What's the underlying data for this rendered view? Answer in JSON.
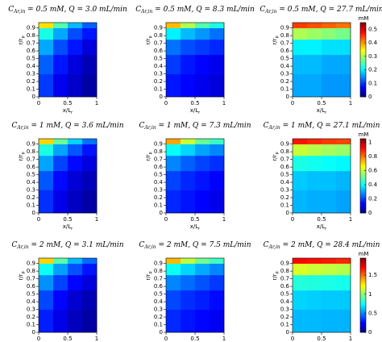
{
  "chart_data": [
    {
      "type": "heatmap",
      "title_symbol": "C",
      "title_subscript": "Ar,in",
      "title": " = 0.5 mM, Q = 3.0 mL/min",
      "xlabel": "x/L",
      "xlabel_sub": "r",
      "ylabel": "r/r",
      "ylabel_sub": "p",
      "xlim": [
        0,
        1
      ],
      "ylim": [
        0,
        0.97
      ],
      "xticks": [
        0,
        0.5,
        1
      ],
      "yticks": [
        0,
        0.1,
        0.2,
        0.3,
        0.4,
        0.5,
        0.6,
        0.7,
        0.8,
        0.9
      ],
      "x_edges": [
        0,
        0.25,
        0.5,
        0.75,
        1
      ],
      "y_edges": [
        0,
        0.3,
        0.55,
        0.75,
        0.9,
        0.97
      ],
      "clim": [
        0,
        0.55
      ],
      "colormap": "jet",
      "z": [
        [
          0.1,
          0.06,
          0.04,
          0.02
        ],
        [
          0.12,
          0.08,
          0.05,
          0.03
        ],
        [
          0.16,
          0.11,
          0.08,
          0.05
        ],
        [
          0.22,
          0.16,
          0.11,
          0.08
        ],
        [
          0.36,
          0.25,
          0.17,
          0.12
        ]
      ]
    },
    {
      "type": "heatmap",
      "title_symbol": "C",
      "title_subscript": "Ar,in",
      "title": " = 0.5 mM, Q = 8.3 mL/min",
      "xlabel": "x/L",
      "xlabel_sub": "r",
      "ylabel": "r/r",
      "ylabel_sub": "p",
      "xlim": [
        0,
        1
      ],
      "ylim": [
        0,
        0.97
      ],
      "xticks": [
        0,
        0.5,
        1
      ],
      "yticks": [
        0,
        0.1,
        0.2,
        0.3,
        0.4,
        0.5,
        0.6,
        0.7,
        0.8,
        0.9
      ],
      "x_edges": [
        0,
        0.25,
        0.5,
        0.75,
        1
      ],
      "y_edges": [
        0,
        0.3,
        0.55,
        0.75,
        0.9,
        0.97
      ],
      "clim": [
        0,
        0.55
      ],
      "colormap": "jet",
      "z": [
        [
          0.08,
          0.07,
          0.06,
          0.05
        ],
        [
          0.1,
          0.08,
          0.07,
          0.06
        ],
        [
          0.13,
          0.11,
          0.1,
          0.09
        ],
        [
          0.2,
          0.17,
          0.15,
          0.13
        ],
        [
          0.38,
          0.3,
          0.25,
          0.22
        ]
      ]
    },
    {
      "type": "heatmap",
      "title_symbol": "C",
      "title_subscript": "Ar,in",
      "title": " = 0.5 mM, Q = 27.7 mL/min",
      "xlabel": "x/L",
      "xlabel_sub": "r",
      "ylabel": "r/r",
      "ylabel_sub": "p",
      "xlim": [
        0,
        1
      ],
      "ylim": [
        0,
        0.97
      ],
      "xticks": [
        0,
        0.5,
        1
      ],
      "yticks": [
        0,
        0.1,
        0.2,
        0.3,
        0.4,
        0.5,
        0.6,
        0.7,
        0.8,
        0.9
      ],
      "x_edges": [
        0,
        0.25,
        0.5,
        0.75,
        1
      ],
      "y_edges": [
        0,
        0.3,
        0.55,
        0.75,
        0.9,
        0.97
      ],
      "clim": [
        0,
        0.55
      ],
      "colormap": "jet",
      "z": [
        [
          0.16,
          0.16,
          0.15,
          0.15
        ],
        [
          0.17,
          0.17,
          0.16,
          0.16
        ],
        [
          0.2,
          0.2,
          0.19,
          0.19
        ],
        [
          0.3,
          0.29,
          0.28,
          0.27
        ],
        [
          0.45,
          0.44,
          0.43,
          0.42
        ]
      ],
      "colorbar": {
        "label": "mM",
        "ticks": [
          0,
          0.1,
          0.2,
          0.3,
          0.4,
          0.5
        ]
      }
    },
    {
      "type": "heatmap",
      "title_symbol": "C",
      "title_subscript": "Ar,in",
      "title": " = 1 mM, Q = 3.6 mL/min",
      "xlabel": "x/L",
      "xlabel_sub": "r",
      "ylabel": "r/r",
      "ylabel_sub": "p",
      "xlim": [
        0,
        1
      ],
      "ylim": [
        0,
        0.97
      ],
      "xticks": [
        0,
        0.5,
        1
      ],
      "yticks": [
        0,
        0.1,
        0.2,
        0.3,
        0.4,
        0.5,
        0.6,
        0.7,
        0.8,
        0.9
      ],
      "x_edges": [
        0,
        0.25,
        0.5,
        0.75,
        1
      ],
      "y_edges": [
        0,
        0.3,
        0.55,
        0.75,
        0.9,
        0.97
      ],
      "clim": [
        0,
        1.05
      ],
      "colormap": "jet",
      "z": [
        [
          0.18,
          0.11,
          0.07,
          0.04
        ],
        [
          0.22,
          0.14,
          0.09,
          0.06
        ],
        [
          0.3,
          0.2,
          0.14,
          0.1
        ],
        [
          0.42,
          0.3,
          0.22,
          0.15
        ],
        [
          0.7,
          0.5,
          0.35,
          0.25
        ]
      ]
    },
    {
      "type": "heatmap",
      "title_symbol": "C",
      "title_subscript": "Ar,in",
      "title": " = 1 mM, Q = 7.3 mL/min",
      "xlabel": "x/L",
      "xlabel_sub": "r",
      "ylabel": "r/r",
      "ylabel_sub": "p",
      "xlim": [
        0,
        1
      ],
      "ylim": [
        0,
        0.97
      ],
      "xticks": [
        0,
        0.5,
        1
      ],
      "yticks": [
        0,
        0.1,
        0.2,
        0.3,
        0.4,
        0.5,
        0.6,
        0.7,
        0.8,
        0.9
      ],
      "x_edges": [
        0,
        0.25,
        0.5,
        0.75,
        1
      ],
      "y_edges": [
        0,
        0.3,
        0.55,
        0.75,
        0.9,
        0.97
      ],
      "clim": [
        0,
        1.05
      ],
      "colormap": "jet",
      "z": [
        [
          0.17,
          0.15,
          0.13,
          0.11
        ],
        [
          0.2,
          0.17,
          0.15,
          0.13
        ],
        [
          0.27,
          0.23,
          0.2,
          0.18
        ],
        [
          0.4,
          0.35,
          0.3,
          0.27
        ],
        [
          0.75,
          0.6,
          0.5,
          0.45
        ]
      ]
    },
    {
      "type": "heatmap",
      "title_symbol": "C",
      "title_subscript": "Ar,in",
      "title": " = 1 mM, Q = 27.1 mL/min",
      "xlabel": "x/L",
      "xlabel_sub": "r",
      "ylabel": "r/r",
      "ylabel_sub": "p",
      "xlim": [
        0,
        1
      ],
      "ylim": [
        0,
        0.97
      ],
      "xticks": [
        0,
        0.5,
        1
      ],
      "yticks": [
        0,
        0.1,
        0.2,
        0.3,
        0.4,
        0.5,
        0.6,
        0.7,
        0.8,
        0.9
      ],
      "x_edges": [
        0,
        0.25,
        0.5,
        0.75,
        1
      ],
      "y_edges": [
        0,
        0.3,
        0.55,
        0.75,
        0.9,
        0.97
      ],
      "clim": [
        0,
        1.05
      ],
      "colormap": "jet",
      "z": [
        [
          0.32,
          0.31,
          0.31,
          0.3
        ],
        [
          0.34,
          0.33,
          0.33,
          0.32
        ],
        [
          0.42,
          0.41,
          0.4,
          0.39
        ],
        [
          0.6,
          0.58,
          0.56,
          0.55
        ],
        [
          0.9,
          0.88,
          0.86,
          0.85
        ]
      ],
      "colorbar": {
        "label": "mM",
        "ticks": [
          0,
          0.2,
          0.4,
          0.6,
          0.8,
          1
        ]
      }
    },
    {
      "type": "heatmap",
      "title_symbol": "C",
      "title_subscript": "Ar,in",
      "title": " = 2 mM, Q = 3.1 mL/min",
      "xlabel": "x/L",
      "xlabel_sub": "r",
      "ylabel": "r/r",
      "ylabel_sub": "p",
      "xlim": [
        0,
        1
      ],
      "ylim": [
        0,
        0.97
      ],
      "xticks": [
        0,
        0.5,
        1
      ],
      "yticks": [
        0,
        0.1,
        0.2,
        0.3,
        0.4,
        0.5,
        0.6,
        0.7,
        0.8,
        0.9
      ],
      "x_edges": [
        0,
        0.25,
        0.5,
        0.75,
        1
      ],
      "y_edges": [
        0,
        0.3,
        0.55,
        0.75,
        0.9,
        0.97
      ],
      "clim": [
        0,
        1.95
      ],
      "colormap": "jet",
      "z": [
        [
          0.3,
          0.2,
          0.12,
          0.07
        ],
        [
          0.38,
          0.25,
          0.16,
          0.1
        ],
        [
          0.52,
          0.37,
          0.25,
          0.18
        ],
        [
          0.75,
          0.55,
          0.4,
          0.28
        ],
        [
          1.3,
          0.9,
          0.6,
          0.45
        ]
      ]
    },
    {
      "type": "heatmap",
      "title_symbol": "C",
      "title_subscript": "Ar,in",
      "title": " = 2 mM, Q = 7.5 mL/min",
      "xlabel": "x/L",
      "xlabel_sub": "r",
      "ylabel": "r/r",
      "ylabel_sub": "p",
      "xlim": [
        0,
        1
      ],
      "ylim": [
        0,
        0.97
      ],
      "xticks": [
        0,
        0.5,
        1
      ],
      "yticks": [
        0,
        0.1,
        0.2,
        0.3,
        0.4,
        0.5,
        0.6,
        0.7,
        0.8,
        0.9
      ],
      "x_edges": [
        0,
        0.25,
        0.5,
        0.75,
        1
      ],
      "y_edges": [
        0,
        0.3,
        0.55,
        0.75,
        0.9,
        0.97
      ],
      "clim": [
        0,
        1.95
      ],
      "colormap": "jet",
      "z": [
        [
          0.32,
          0.28,
          0.25,
          0.22
        ],
        [
          0.38,
          0.33,
          0.3,
          0.26
        ],
        [
          0.5,
          0.45,
          0.4,
          0.35
        ],
        [
          0.75,
          0.65,
          0.57,
          0.5
        ],
        [
          1.35,
          1.1,
          0.95,
          0.85
        ]
      ]
    },
    {
      "type": "heatmap",
      "title_symbol": "C",
      "title_subscript": "Ar,in",
      "title": " = 2 mM, Q = 28.4 mL/min",
      "xlabel": "x/L",
      "xlabel_sub": "r",
      "ylabel": "r/r",
      "ylabel_sub": "p",
      "xlim": [
        0,
        1
      ],
      "ylim": [
        0,
        0.97
      ],
      "xticks": [
        0,
        0.5,
        1
      ],
      "yticks": [
        0,
        0.1,
        0.2,
        0.3,
        0.4,
        0.5,
        0.6,
        0.7,
        0.8,
        0.9
      ],
      "x_edges": [
        0,
        0.25,
        0.5,
        0.75,
        1
      ],
      "y_edges": [
        0,
        0.3,
        0.55,
        0.75,
        0.9,
        0.97
      ],
      "clim": [
        0,
        1.95
      ],
      "colormap": "jet",
      "z": [
        [
          0.6,
          0.6,
          0.59,
          0.59
        ],
        [
          0.65,
          0.64,
          0.63,
          0.63
        ],
        [
          0.8,
          0.79,
          0.78,
          0.77
        ],
        [
          1.15,
          1.12,
          1.1,
          1.08
        ],
        [
          1.7,
          1.68,
          1.66,
          1.64
        ]
      ],
      "colorbar": {
        "label": "mM",
        "ticks": [
          0,
          0.5,
          1,
          1.5
        ]
      }
    }
  ]
}
